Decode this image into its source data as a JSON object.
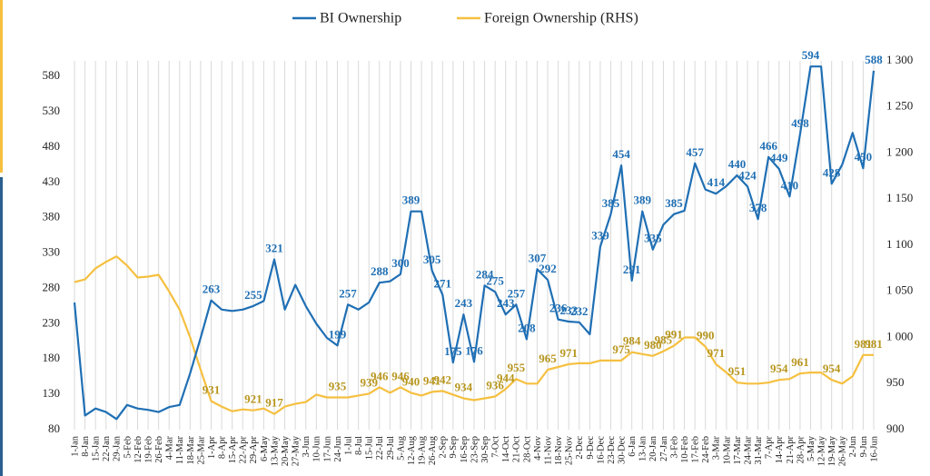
{
  "chart_data": {
    "type": "line",
    "categories": [
      "1-Jan",
      "8-Jan",
      "15-Jan",
      "22-Jan",
      "29-Jan",
      "5-Feb",
      "12-Feb",
      "19-Feb",
      "26-Feb",
      "4-Mar",
      "11-Mar",
      "18-Mar",
      "25-Mar",
      "1-Apr",
      "8-Apr",
      "15-Apr",
      "22-Apr",
      "29-Apr",
      "6-May",
      "13-May",
      "20-May",
      "27-May",
      "3-Jun",
      "10-Jun",
      "17-Jun",
      "24-Jun",
      "1-Jul",
      "8-Jul",
      "15-Jul",
      "22-Jul",
      "29-Jul",
      "5-Aug",
      "12-Aug",
      "19-Aug",
      "26-Aug",
      "2-Sep",
      "9-Sep",
      "16-Sep",
      "23-Sep",
      "30-Sep",
      "7-Oct",
      "14-Oct",
      "21-Oct",
      "28-Oct",
      "4-Nov",
      "11-Nov",
      "18-Nov",
      "25-Nov",
      "2-Dec",
      "9-Dec",
      "16-Dec",
      "23-Dec",
      "30-Dec",
      "6-Jan",
      "13-Jan",
      "20-Jan",
      "27-Jan",
      "3-Feb",
      "10-Feb",
      "17-Feb",
      "24-Feb",
      "3-Mar",
      "10-Mar",
      "17-Mar",
      "24-Mar",
      "31-Mar",
      "7-Apr",
      "14-Apr",
      "21-Apr",
      "28-Apr",
      "5-May",
      "12-May",
      "19-May",
      "26-May",
      "2-Jun",
      "9-Jun",
      "16-Jun"
    ],
    "series": [
      {
        "name": "BI Ownership",
        "color": "#1f6fb4",
        "label_color": "#1f6fb4",
        "values": [
          260,
          100,
          110,
          105,
          95,
          115,
          110,
          108,
          105,
          112,
          115,
          160,
          210,
          263,
          250,
          248,
          250,
          255,
          262,
          321,
          250,
          285,
          255,
          230,
          210,
          199,
          257,
          250,
          260,
          288,
          290,
          300,
          389,
          389,
          305,
          271,
          175,
          243,
          176,
          284,
          275,
          243,
          257,
          208,
          307,
          292,
          236,
          233,
          232,
          215,
          339,
          385,
          454,
          291,
          389,
          335,
          370,
          385,
          390,
          457,
          420,
          414,
          425,
          440,
          424,
          378,
          466,
          449,
          410,
          498,
          594,
          594,
          428,
          455,
          500,
          450,
          588
        ],
        "value_labels": [
          null,
          null,
          null,
          null,
          null,
          null,
          null,
          null,
          null,
          null,
          null,
          null,
          null,
          "263",
          null,
          null,
          null,
          "255",
          null,
          "321",
          null,
          null,
          null,
          null,
          null,
          "199",
          "257",
          null,
          null,
          "288",
          null,
          "300",
          "389",
          null,
          "305",
          "271",
          "175",
          "243",
          "176",
          "284",
          "275",
          "243",
          "257",
          "208",
          "307",
          "292",
          "236",
          "233",
          "232",
          null,
          "339",
          "385",
          "454",
          "291",
          "389",
          "335",
          null,
          "385",
          null,
          "457",
          null,
          "414",
          null,
          "440",
          "424",
          "378",
          "466",
          "449",
          "410",
          "498",
          "594",
          null,
          "428",
          null,
          null,
          "450",
          "588"
        ]
      },
      {
        "name": "Foreign Ownership (RHS)",
        "color": "#f5c040",
        "label_color": "#b8961e",
        "axis": "y2",
        "values": [
          1060,
          1063,
          1075,
          1082,
          1088,
          1078,
          1065,
          1066,
          1068,
          1050,
          1030,
          1000,
          965,
          931,
          925,
          920,
          922,
          921,
          923,
          917,
          925,
          928,
          930,
          938,
          935,
          935,
          935,
          937,
          939,
          946,
          940,
          946,
          940,
          937,
          941,
          942,
          938,
          934,
          932,
          934,
          936,
          944,
          955,
          950,
          950,
          965,
          968,
          971,
          972,
          972,
          975,
          975,
          975,
          984,
          982,
          980,
          985,
          991,
          1000,
          1000,
          990,
          971,
          962,
          951,
          950,
          950,
          951,
          954,
          955,
          961,
          962,
          962,
          954,
          950,
          958,
          981,
          981
        ],
        "value_labels": [
          null,
          null,
          null,
          null,
          null,
          null,
          null,
          null,
          null,
          null,
          null,
          null,
          null,
          "931",
          null,
          null,
          null,
          "921",
          null,
          "917",
          null,
          null,
          null,
          null,
          null,
          "935",
          null,
          null,
          "939",
          "946",
          null,
          "946",
          "940",
          null,
          "941",
          "942",
          null,
          "934",
          null,
          null,
          "936",
          "944",
          "955",
          null,
          null,
          "965",
          null,
          "971",
          null,
          null,
          null,
          null,
          "975",
          "984",
          null,
          "980",
          "985",
          "991",
          null,
          null,
          "990",
          "971",
          null,
          "951",
          null,
          null,
          null,
          "954",
          null,
          "961",
          null,
          null,
          "954",
          null,
          null,
          "981",
          "981"
        ]
      }
    ],
    "ylim": [
      80,
      602
    ],
    "yticks": [
      80,
      130,
      180,
      230,
      280,
      330,
      380,
      430,
      480,
      530,
      580
    ],
    "y2lim": [
      900,
      1300
    ],
    "y2ticks": [
      900,
      950,
      {
        "value": 1000,
        "label": "1 000"
      },
      {
        "value": 1050,
        "label": "1 050"
      },
      {
        "value": 1100,
        "label": "1 100"
      },
      {
        "value": 1150,
        "label": "1 150"
      },
      {
        "value": 1200,
        "label": "1 200"
      },
      {
        "value": 1250,
        "label": "1 250"
      },
      {
        "value": 1300,
        "label": "1 300"
      }
    ],
    "grid": true,
    "legend": "top"
  }
}
